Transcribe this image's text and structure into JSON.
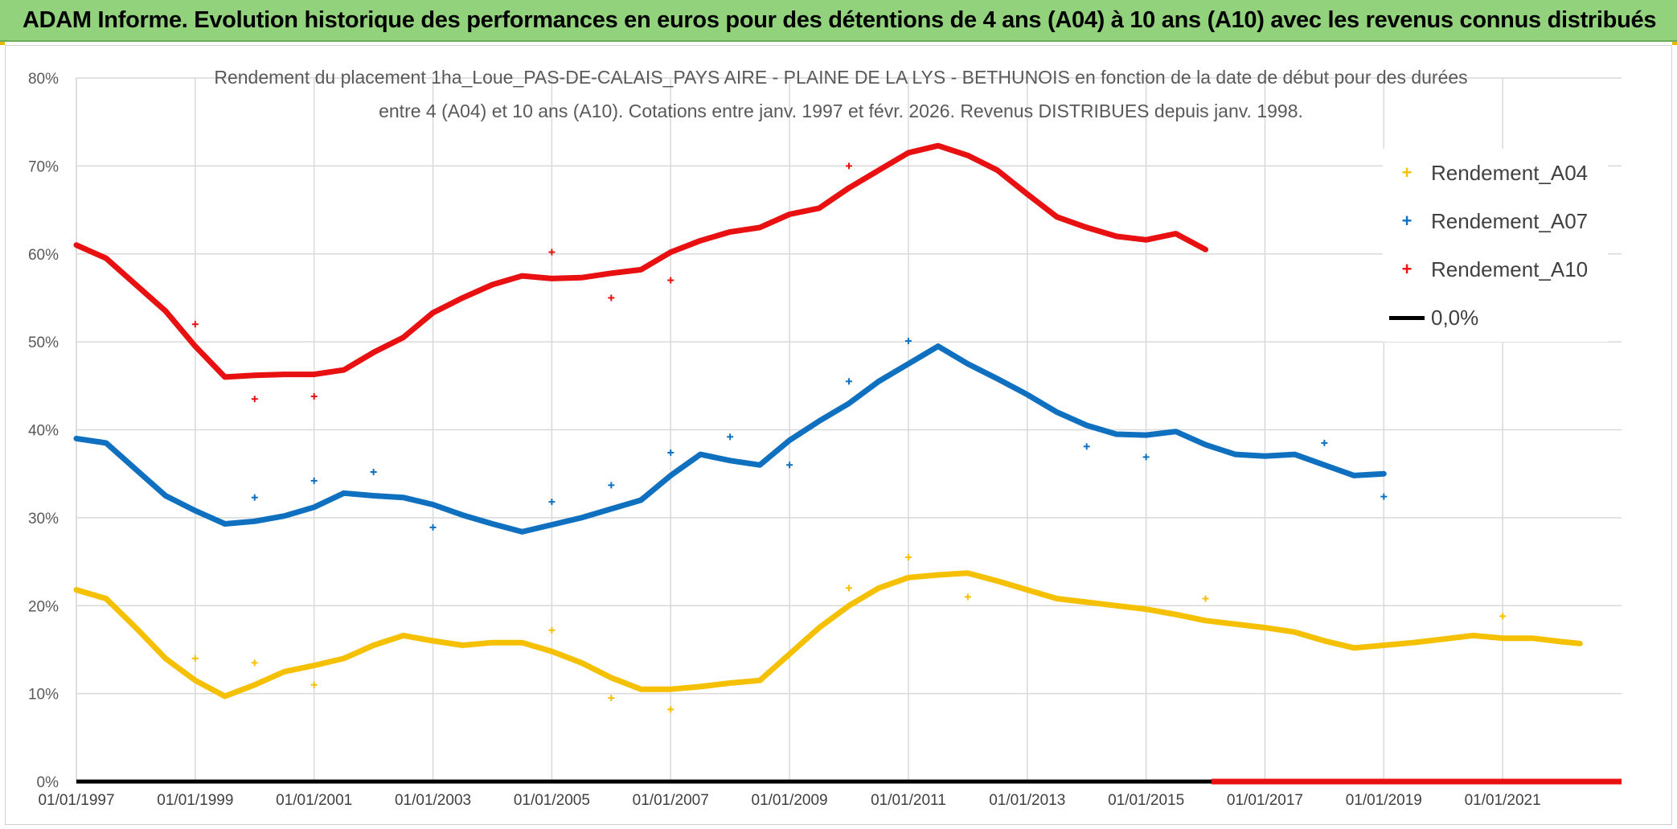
{
  "banner": {
    "title": "ADAM Informe. Evolution historique des performances en euros pour des détentions de 4 ans (A04) à 10 ans (A10) avec les revenus connus distribués"
  },
  "chart_data": {
    "type": "scatter",
    "title_line1": "Rendement du placement 1ha_Loue_PAS-DE-CALAIS_PAYS AIRE - PLAINE DE LA LYS - BETHUNOIS en fonction de la date de début pour des durées",
    "title_line2": "entre 4 (A04) et 10 ans (A10). Cotations entre janv. 1997 et févr. 2026. Revenus DISTRIBUES depuis janv. 1998.",
    "xlabel": "",
    "ylabel": "",
    "x_range": [
      1997.0,
      2023.0
    ],
    "ylim": [
      0,
      80
    ],
    "y_ticks": [
      "0%",
      "10%",
      "20%",
      "30%",
      "40%",
      "50%",
      "60%",
      "70%",
      "80%"
    ],
    "x_tick_values": [
      1997,
      1999,
      2001,
      2003,
      2005,
      2007,
      2009,
      2011,
      2013,
      2015,
      2017,
      2019,
      2021
    ],
    "x_ticks": [
      "01/01/1997",
      "01/01/1999",
      "01/01/2001",
      "01/01/2003",
      "01/01/2005",
      "01/01/2007",
      "01/01/2009",
      "01/01/2011",
      "01/01/2013",
      "01/01/2015",
      "01/01/2017",
      "01/01/2019",
      "01/01/2021"
    ],
    "grid": true,
    "legend_position": "right",
    "series": [
      {
        "name": "Rendement_A04",
        "color": "#f5c000",
        "points": [
          [
            1997.0,
            21.8
          ],
          [
            1997.5,
            20.8
          ],
          [
            1998.0,
            17.5
          ],
          [
            1998.5,
            14.0
          ],
          [
            1999.0,
            11.5
          ],
          [
            1999.5,
            9.7
          ],
          [
            2000.0,
            11.0
          ],
          [
            2000.5,
            12.5
          ],
          [
            2001.0,
            13.2
          ],
          [
            2001.5,
            14.0
          ],
          [
            2002.0,
            15.5
          ],
          [
            2002.5,
            16.6
          ],
          [
            2003.0,
            16.0
          ],
          [
            2003.5,
            15.5
          ],
          [
            2004.0,
            15.8
          ],
          [
            2004.5,
            15.8
          ],
          [
            2005.0,
            14.8
          ],
          [
            2005.5,
            13.5
          ],
          [
            2006.0,
            11.8
          ],
          [
            2006.5,
            10.5
          ],
          [
            2007.0,
            10.5
          ],
          [
            2007.5,
            10.8
          ],
          [
            2008.0,
            11.2
          ],
          [
            2008.5,
            11.5
          ],
          [
            2009.0,
            14.5
          ],
          [
            2009.5,
            17.5
          ],
          [
            2010.0,
            20.0
          ],
          [
            2010.5,
            22.0
          ],
          [
            2011.0,
            23.2
          ],
          [
            2011.5,
            23.5
          ],
          [
            2012.0,
            23.7
          ],
          [
            2012.5,
            22.8
          ],
          [
            2013.0,
            21.8
          ],
          [
            2013.5,
            20.8
          ],
          [
            2014.0,
            20.4
          ],
          [
            2014.5,
            20.0
          ],
          [
            2015.0,
            19.6
          ],
          [
            2015.5,
            19.0
          ],
          [
            2016.0,
            18.3
          ],
          [
            2016.5,
            17.9
          ],
          [
            2017.0,
            17.5
          ],
          [
            2017.5,
            17.0
          ],
          [
            2018.0,
            16.0
          ],
          [
            2018.5,
            15.2
          ],
          [
            2019.0,
            15.5
          ],
          [
            2019.5,
            15.8
          ],
          [
            2020.0,
            16.2
          ],
          [
            2020.5,
            16.6
          ],
          [
            2021.0,
            16.3
          ],
          [
            2021.5,
            16.3
          ],
          [
            2022.0,
            15.9
          ],
          [
            2022.3,
            15.7
          ]
        ],
        "outliers": [
          [
            1999.0,
            14.0
          ],
          [
            2000.0,
            13.5
          ],
          [
            2001.0,
            11.0
          ],
          [
            2005.0,
            17.2
          ],
          [
            2006.0,
            9.5
          ],
          [
            2007.0,
            8.2
          ],
          [
            2010.0,
            22.0
          ],
          [
            2011.0,
            25.5
          ],
          [
            2012.0,
            21.0
          ],
          [
            2016.0,
            20.8
          ],
          [
            2021.0,
            18.8
          ]
        ]
      },
      {
        "name": "Rendement_A07",
        "color": "#1070c0",
        "points": [
          [
            1997.0,
            39.0
          ],
          [
            1997.5,
            38.5
          ],
          [
            1998.0,
            35.5
          ],
          [
            1998.5,
            32.5
          ],
          [
            1999.0,
            30.8
          ],
          [
            1999.5,
            29.3
          ],
          [
            2000.0,
            29.6
          ],
          [
            2000.5,
            30.2
          ],
          [
            2001.0,
            31.2
          ],
          [
            2001.5,
            32.8
          ],
          [
            2002.0,
            32.5
          ],
          [
            2002.5,
            32.3
          ],
          [
            2003.0,
            31.5
          ],
          [
            2003.5,
            30.3
          ],
          [
            2004.0,
            29.3
          ],
          [
            2004.5,
            28.4
          ],
          [
            2005.0,
            29.2
          ],
          [
            2005.5,
            30.0
          ],
          [
            2006.0,
            31.0
          ],
          [
            2006.5,
            32.0
          ],
          [
            2007.0,
            34.8
          ],
          [
            2007.5,
            37.2
          ],
          [
            2008.0,
            36.5
          ],
          [
            2008.5,
            36.0
          ],
          [
            2009.0,
            38.8
          ],
          [
            2009.5,
            41.0
          ],
          [
            2010.0,
            43.0
          ],
          [
            2010.5,
            45.5
          ],
          [
            2011.0,
            47.5
          ],
          [
            2011.5,
            49.5
          ],
          [
            2012.0,
            47.5
          ],
          [
            2012.5,
            45.8
          ],
          [
            2013.0,
            44.0
          ],
          [
            2013.5,
            42.0
          ],
          [
            2014.0,
            40.5
          ],
          [
            2014.5,
            39.5
          ],
          [
            2015.0,
            39.4
          ],
          [
            2015.5,
            39.8
          ],
          [
            2016.0,
            38.3
          ],
          [
            2016.5,
            37.2
          ],
          [
            2017.0,
            37.0
          ],
          [
            2017.5,
            37.2
          ],
          [
            2018.0,
            36.0
          ],
          [
            2018.5,
            34.8
          ],
          [
            2019.0,
            35.0
          ]
        ],
        "outliers": [
          [
            2000.0,
            32.3
          ],
          [
            2001.0,
            34.2
          ],
          [
            2002.0,
            35.2
          ],
          [
            2003.0,
            28.9
          ],
          [
            2005.0,
            31.8
          ],
          [
            2006.0,
            33.7
          ],
          [
            2007.0,
            37.4
          ],
          [
            2008.0,
            39.2
          ],
          [
            2009.0,
            36.0
          ],
          [
            2010.0,
            45.5
          ],
          [
            2011.0,
            50.1
          ],
          [
            2014.0,
            38.1
          ],
          [
            2015.0,
            36.9
          ],
          [
            2018.0,
            38.5
          ],
          [
            2019.0,
            32.4
          ]
        ]
      },
      {
        "name": "Rendement_A10",
        "color": "#e81010",
        "points": [
          [
            1997.0,
            61.0
          ],
          [
            1997.5,
            59.5
          ],
          [
            1998.0,
            56.5
          ],
          [
            1998.5,
            53.5
          ],
          [
            1999.0,
            49.5
          ],
          [
            1999.5,
            46.0
          ],
          [
            2000.0,
            46.2
          ],
          [
            2000.5,
            46.3
          ],
          [
            2001.0,
            46.3
          ],
          [
            2001.5,
            46.8
          ],
          [
            2002.0,
            48.8
          ],
          [
            2002.5,
            50.5
          ],
          [
            2003.0,
            53.3
          ],
          [
            2003.5,
            55.0
          ],
          [
            2004.0,
            56.5
          ],
          [
            2004.5,
            57.5
          ],
          [
            2005.0,
            57.2
          ],
          [
            2005.5,
            57.3
          ],
          [
            2006.0,
            57.8
          ],
          [
            2006.5,
            58.2
          ],
          [
            2007.0,
            60.2
          ],
          [
            2007.5,
            61.5
          ],
          [
            2008.0,
            62.5
          ],
          [
            2008.5,
            63.0
          ],
          [
            2009.0,
            64.5
          ],
          [
            2009.5,
            65.2
          ],
          [
            2010.0,
            67.5
          ],
          [
            2010.5,
            69.5
          ],
          [
            2011.0,
            71.5
          ],
          [
            2011.5,
            72.3
          ],
          [
            2012.0,
            71.2
          ],
          [
            2012.5,
            69.5
          ],
          [
            2013.0,
            66.8
          ],
          [
            2013.5,
            64.2
          ],
          [
            2014.0,
            63.0
          ],
          [
            2014.5,
            62.0
          ],
          [
            2015.0,
            61.6
          ],
          [
            2015.5,
            62.3
          ],
          [
            2016.0,
            60.5
          ]
        ],
        "outliers": [
          [
            1999.0,
            52.0
          ],
          [
            2000.0,
            43.5
          ],
          [
            2001.0,
            43.8
          ],
          [
            2005.0,
            60.2
          ],
          [
            2006.0,
            55.0
          ],
          [
            2007.0,
            57.0
          ],
          [
            2010.0,
            70.0
          ]
        ]
      },
      {
        "name": "0,0%",
        "color": "#000000",
        "points": [
          [
            1997.0,
            0
          ],
          [
            2023.0,
            0
          ]
        ]
      }
    ],
    "zero_red_segment": [
      2016.1,
      2023.0
    ]
  }
}
